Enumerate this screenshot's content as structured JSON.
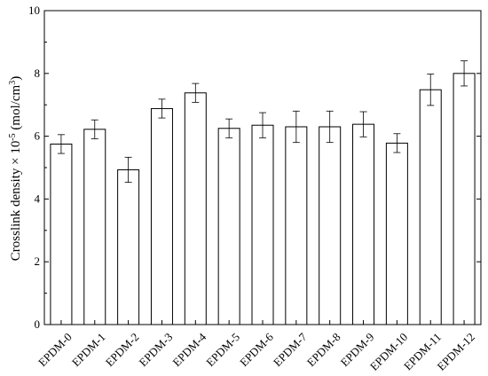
{
  "chart_data": {
    "type": "bar",
    "categories": [
      "EPDM-0",
      "EPDM-1",
      "EPDM-2",
      "EPDM-3",
      "EPDM-4",
      "EPDM-5",
      "EPDM-6",
      "EPDM-7",
      "EPDM-8",
      "EPDM-9",
      "EPDM-10",
      "EPDM-11",
      "EPDM-12"
    ],
    "values": [
      5.75,
      6.22,
      4.93,
      6.88,
      7.38,
      6.25,
      6.35,
      6.3,
      6.3,
      6.38,
      5.78,
      7.48,
      8.0
    ],
    "errors": [
      0.3,
      0.3,
      0.4,
      0.3,
      0.3,
      0.3,
      0.4,
      0.5,
      0.5,
      0.4,
      0.3,
      0.5,
      0.4
    ],
    "title": "",
    "xlabel": "",
    "ylabel": {
      "prefix": "Crosslink density × 10",
      "exponent": "-5",
      "unit_open": " (mol/cm",
      "unit_exponent": "3",
      "unit_close": ")"
    },
    "ylim": [
      0,
      10
    ],
    "yticks": [
      "0",
      "2",
      "4",
      "6",
      "8",
      "10"
    ],
    "grid": false,
    "legend": "none",
    "bar_fill": "#ffffff",
    "bar_stroke": "#000000"
  }
}
